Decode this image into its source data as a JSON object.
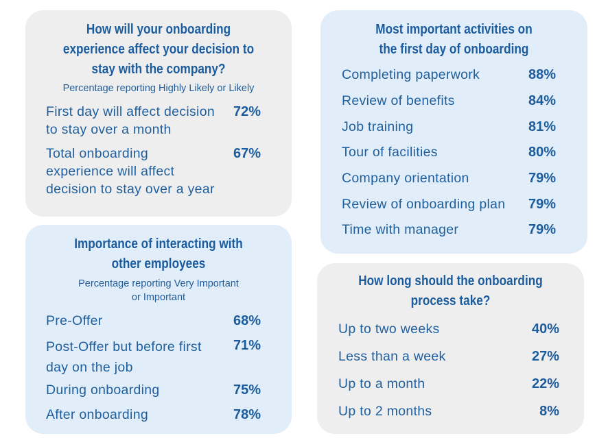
{
  "card1": {
    "title_lines": [
      "How will your onboarding",
      "experience affect your decision to",
      "stay with the company?"
    ],
    "subtitle": "Percentage reporting Highly Likely or Likely",
    "rows": [
      {
        "label_lines": [
          "First day will affect decision",
          "to stay over a month"
        ],
        "value": "72%"
      },
      {
        "label_lines": [
          "Total onboarding",
          "experience will affect",
          "decision to stay over a year"
        ],
        "value": "67%"
      }
    ]
  },
  "card2": {
    "title_lines": [
      "Most important activities on",
      "the first day of onboarding"
    ],
    "rows": [
      {
        "label": "Completing paperwork",
        "value": "88%"
      },
      {
        "label": "Review of benefits",
        "value": "84%"
      },
      {
        "label": "Job training",
        "value": "81%"
      },
      {
        "label": "Tour of facilities",
        "value": "80%"
      },
      {
        "label": "Company orientation",
        "value": "79%"
      },
      {
        "label": "Review of onboarding plan",
        "value": "79%"
      },
      {
        "label": "Time with manager",
        "value": "79%"
      }
    ]
  },
  "card3": {
    "title_lines": [
      "Importance of interacting with",
      "other employees"
    ],
    "subtitle_lines": [
      "Percentage reporting Very Important",
      "or Important"
    ],
    "rows": [
      {
        "label_lines": [
          "Pre-Offer"
        ],
        "value": "68%"
      },
      {
        "label_lines": [
          "Post-Offer but before first",
          "day on the job"
        ],
        "value": "71%"
      },
      {
        "label_lines": [
          "During onboarding"
        ],
        "value": "75%"
      },
      {
        "label_lines": [
          "After onboarding"
        ],
        "value": "78%"
      }
    ]
  },
  "card4": {
    "title_lines": [
      "How long should the onboarding",
      "process take?"
    ],
    "rows": [
      {
        "label": "Up to two weeks",
        "value": "40%"
      },
      {
        "label": "Less than a week",
        "value": "27%"
      },
      {
        "label": "Up to a month",
        "value": "22%"
      },
      {
        "label": "Up to 2 months",
        "value": "8%"
      }
    ]
  }
}
